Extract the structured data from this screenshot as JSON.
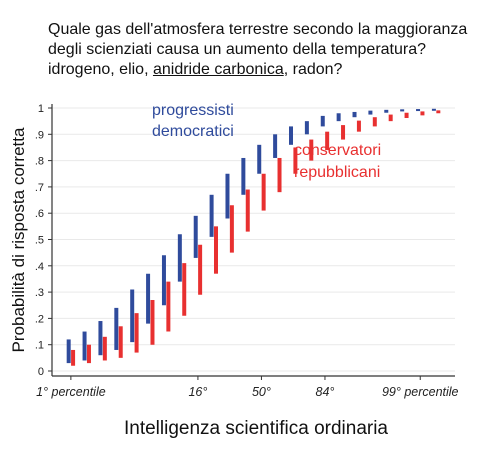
{
  "question": {
    "before": "Quale gas dell'atmosfera terrestre secondo la maggioranza degli scienziati causa un aumento della temperatura? idrogeno, elio,",
    "answer": "anidride carbonica",
    "after": ", radon?"
  },
  "colors": {
    "series_1": "#2f4b9c",
    "series_2": "#e83030",
    "axis": "#333333",
    "grid": "#e9e9e9"
  },
  "chart_data": {
    "type": "range_bar",
    "ylabel": "Probabilità di risposta corretta",
    "xlabel": "Intelligenza scientifica ordinaria",
    "ylim": [
      0,
      1
    ],
    "y_ticks": [
      "0",
      ".1",
      ".2",
      ".3",
      ".4",
      ".5",
      ".6",
      ".7",
      ".8",
      ".9",
      "1"
    ],
    "x_ticks": [
      {
        "label": "1° percentile",
        "at": 1
      },
      {
        "label": "16°",
        "at": 9
      },
      {
        "label": "50°",
        "at": 13
      },
      {
        "label": "84°",
        "at": 17
      },
      {
        "label": "99° percentile",
        "at": 23
      }
    ],
    "xlim": [
      0,
      25
    ],
    "grid": true,
    "series": [
      {
        "name": "progressisti democratici",
        "label_lines": [
          "progressisti",
          "democratici"
        ],
        "x": [
          1,
          2,
          3,
          4,
          5,
          6,
          7,
          8,
          9,
          10,
          11,
          12,
          13,
          14,
          15,
          16,
          17,
          18,
          19,
          20,
          21,
          22,
          23,
          24
        ],
        "low": [
          0.03,
          0.04,
          0.06,
          0.08,
          0.11,
          0.18,
          0.25,
          0.34,
          0.43,
          0.51,
          0.58,
          0.67,
          0.75,
          0.81,
          0.86,
          0.9,
          0.93,
          0.95,
          0.965,
          0.975,
          0.982,
          0.987,
          0.99,
          0.993
        ],
        "high": [
          0.12,
          0.15,
          0.19,
          0.24,
          0.31,
          0.37,
          0.44,
          0.52,
          0.59,
          0.67,
          0.75,
          0.81,
          0.86,
          0.9,
          0.93,
          0.95,
          0.97,
          0.98,
          0.985,
          0.99,
          0.993,
          0.995,
          0.996,
          0.997
        ]
      },
      {
        "name": "conservatori repubblicani",
        "label_lines": [
          "conservatori",
          "repubblicani"
        ],
        "x": [
          1,
          2,
          3,
          4,
          5,
          6,
          7,
          8,
          9,
          10,
          11,
          12,
          13,
          14,
          15,
          16,
          17,
          18,
          19,
          20,
          21,
          22,
          23,
          24
        ],
        "low": [
          0.02,
          0.03,
          0.04,
          0.05,
          0.07,
          0.1,
          0.15,
          0.21,
          0.29,
          0.37,
          0.45,
          0.53,
          0.61,
          0.68,
          0.75,
          0.8,
          0.84,
          0.88,
          0.91,
          0.93,
          0.95,
          0.962,
          0.972,
          0.98
        ],
        "high": [
          0.08,
          0.1,
          0.13,
          0.17,
          0.22,
          0.27,
          0.34,
          0.41,
          0.48,
          0.55,
          0.63,
          0.69,
          0.75,
          0.81,
          0.85,
          0.88,
          0.91,
          0.935,
          0.952,
          0.965,
          0.975,
          0.982,
          0.987,
          0.991
        ]
      }
    ]
  }
}
